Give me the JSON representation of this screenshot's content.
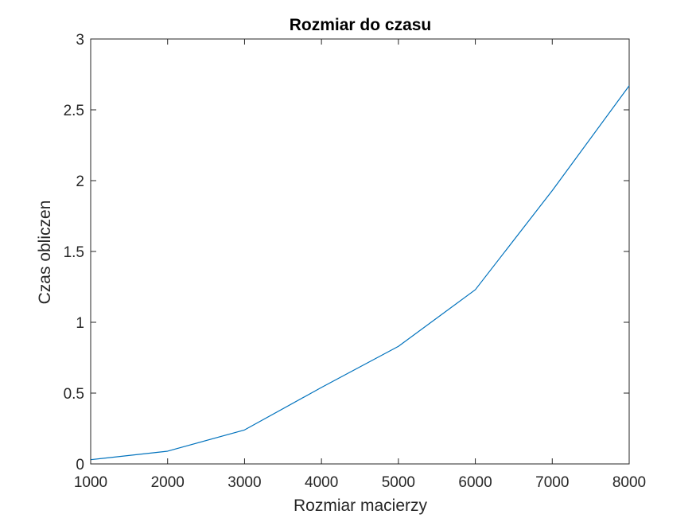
{
  "colors": {
    "background": "#ffffff",
    "axes": "#262626",
    "series": "#0072bd"
  },
  "chart_data": {
    "type": "line",
    "title": "Rozmiar do czasu",
    "xlabel": "Rozmiar macierzy",
    "ylabel": "Czas obliczen",
    "xlim": [
      1000,
      8000
    ],
    "ylim": [
      0,
      3
    ],
    "grid": false,
    "legend": "none",
    "x_ticks": [
      1000,
      2000,
      3000,
      4000,
      5000,
      6000,
      7000,
      8000
    ],
    "x_tick_labels": [
      "1000",
      "2000",
      "3000",
      "4000",
      "5000",
      "6000",
      "7000",
      "8000"
    ],
    "y_ticks": [
      0,
      0.5,
      1,
      1.5,
      2,
      2.5,
      3
    ],
    "y_tick_labels": [
      "0",
      "0.5",
      "1",
      "1.5",
      "2",
      "2.5",
      "3"
    ],
    "series": [
      {
        "x": [
          1000,
          2000,
          3000,
          4000,
          5000,
          6000,
          7000,
          8000
        ],
        "values": [
          0.03,
          0.09,
          0.24,
          0.54,
          0.83,
          1.23,
          1.93,
          2.67
        ]
      }
    ]
  }
}
